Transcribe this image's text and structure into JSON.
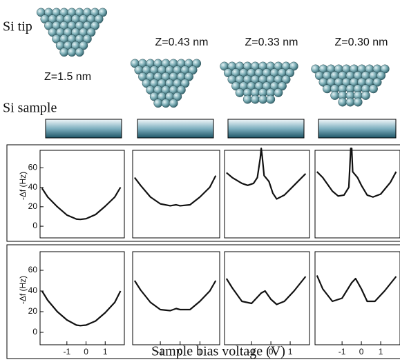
{
  "labels": {
    "tip": "Si tip",
    "sample": "Si sample",
    "z": [
      "Z=1.5 nm",
      "Z=0.43 nm",
      "Z=0.33 nm",
      "Z=0.30 nm"
    ],
    "xlabel": "Sample bias voltage  (V)"
  },
  "chart_data": [
    {
      "type": "line",
      "color": "#111",
      "ylabel": "-Δf (Hz)",
      "xlim": [
        -2.4,
        2.0
      ],
      "ylim": [
        -12,
        78
      ],
      "yticks": [
        0,
        20,
        40,
        60
      ],
      "x": [
        -2.3,
        -2,
        -1.5,
        -1,
        -0.5,
        -0.3,
        0,
        0.5,
        1,
        1.5,
        1.8
      ],
      "values": [
        39,
        30,
        20,
        11.5,
        7.3,
        7,
        7.7,
        12,
        20.5,
        30,
        40
      ]
    },
    {
      "type": "line",
      "color": "#111",
      "xlim": [
        -2.4,
        2.0
      ],
      "ylim": [
        -12,
        78
      ],
      "x": [
        -2.3,
        -2,
        -1.5,
        -1,
        -0.5,
        -0.2,
        0,
        0.5,
        1,
        1.5,
        1.8
      ],
      "values": [
        50,
        42,
        30,
        23,
        21,
        22,
        21,
        22,
        30,
        40,
        52
      ]
    },
    {
      "type": "line",
      "color": "#111",
      "xlim": [
        -2.4,
        2.0
      ],
      "ylim": [
        -12,
        78
      ],
      "x": [
        -2.3,
        -2,
        -1.5,
        -1.2,
        -0.9,
        -0.7,
        -0.55,
        -0.5,
        -0.45,
        -0.35,
        -0.1,
        0.1,
        0.3,
        0.7,
        1.2,
        1.8
      ],
      "values": [
        55,
        50,
        44,
        42,
        44,
        50,
        70,
        80,
        72,
        52,
        46,
        34,
        28,
        32,
        42,
        54
      ]
    },
    {
      "type": "line",
      "color": "#111",
      "xlim": [
        -2.4,
        2.0
      ],
      "ylim": [
        -12,
        78
      ],
      "x": [
        -2.3,
        -2,
        -1.5,
        -1.2,
        -0.9,
        -0.65,
        -0.55,
        -0.5,
        -0.45,
        -0.2,
        0,
        0.3,
        0.6,
        1,
        1.5,
        1.8
      ],
      "values": [
        56,
        50,
        36,
        31,
        32,
        40,
        80,
        80,
        56,
        50,
        42,
        32,
        30,
        33,
        45,
        56
      ]
    },
    {
      "type": "line",
      "color": "#111",
      "ylabel": "-Δf (Hz)",
      "xlim": [
        -2.4,
        2.0
      ],
      "ylim": [
        -12,
        78
      ],
      "yticks": [
        0,
        20,
        40,
        60
      ],
      "xticks": [
        -1,
        0,
        1
      ],
      "x": [
        -2.3,
        -2,
        -1.5,
        -1,
        -0.5,
        -0.3,
        0,
        0.5,
        1,
        1.5,
        1.8
      ],
      "values": [
        40,
        31,
        20,
        12,
        7,
        6.5,
        7,
        11,
        19,
        29,
        40
      ]
    },
    {
      "type": "line",
      "color": "#111",
      "xlim": [
        -2.4,
        2.0
      ],
      "ylim": [
        -12,
        78
      ],
      "xticks": [
        -1,
        0,
        1
      ],
      "x": [
        -2.3,
        -2,
        -1.5,
        -1,
        -0.5,
        -0.2,
        0,
        0.5,
        1,
        1.5,
        1.8
      ],
      "values": [
        50,
        41,
        29,
        22,
        21,
        23,
        22,
        22,
        30,
        40,
        50
      ]
    },
    {
      "type": "line",
      "color": "#111",
      "xlim": [
        -2.4,
        2.0
      ],
      "ylim": [
        -12,
        78
      ],
      "xticks": [
        -1,
        0,
        1
      ],
      "x": [
        -2.3,
        -2,
        -1.5,
        -1,
        -0.5,
        -0.3,
        0,
        0.3,
        0.7,
        1.2,
        1.8
      ],
      "values": [
        52,
        43,
        30,
        28,
        38,
        40,
        32,
        27,
        30,
        40,
        54
      ]
    },
    {
      "type": "line",
      "color": "#111",
      "xlim": [
        -2.4,
        2.0
      ],
      "ylim": [
        -12,
        78
      ],
      "xticks": [
        -1,
        0,
        1
      ],
      "x": [
        -2.3,
        -2,
        -1.5,
        -1,
        -0.5,
        -0.3,
        0,
        0.3,
        0.7,
        1.2,
        1.8
      ],
      "values": [
        55,
        42,
        30,
        33,
        48,
        52,
        42,
        30,
        30,
        40,
        54
      ]
    }
  ]
}
